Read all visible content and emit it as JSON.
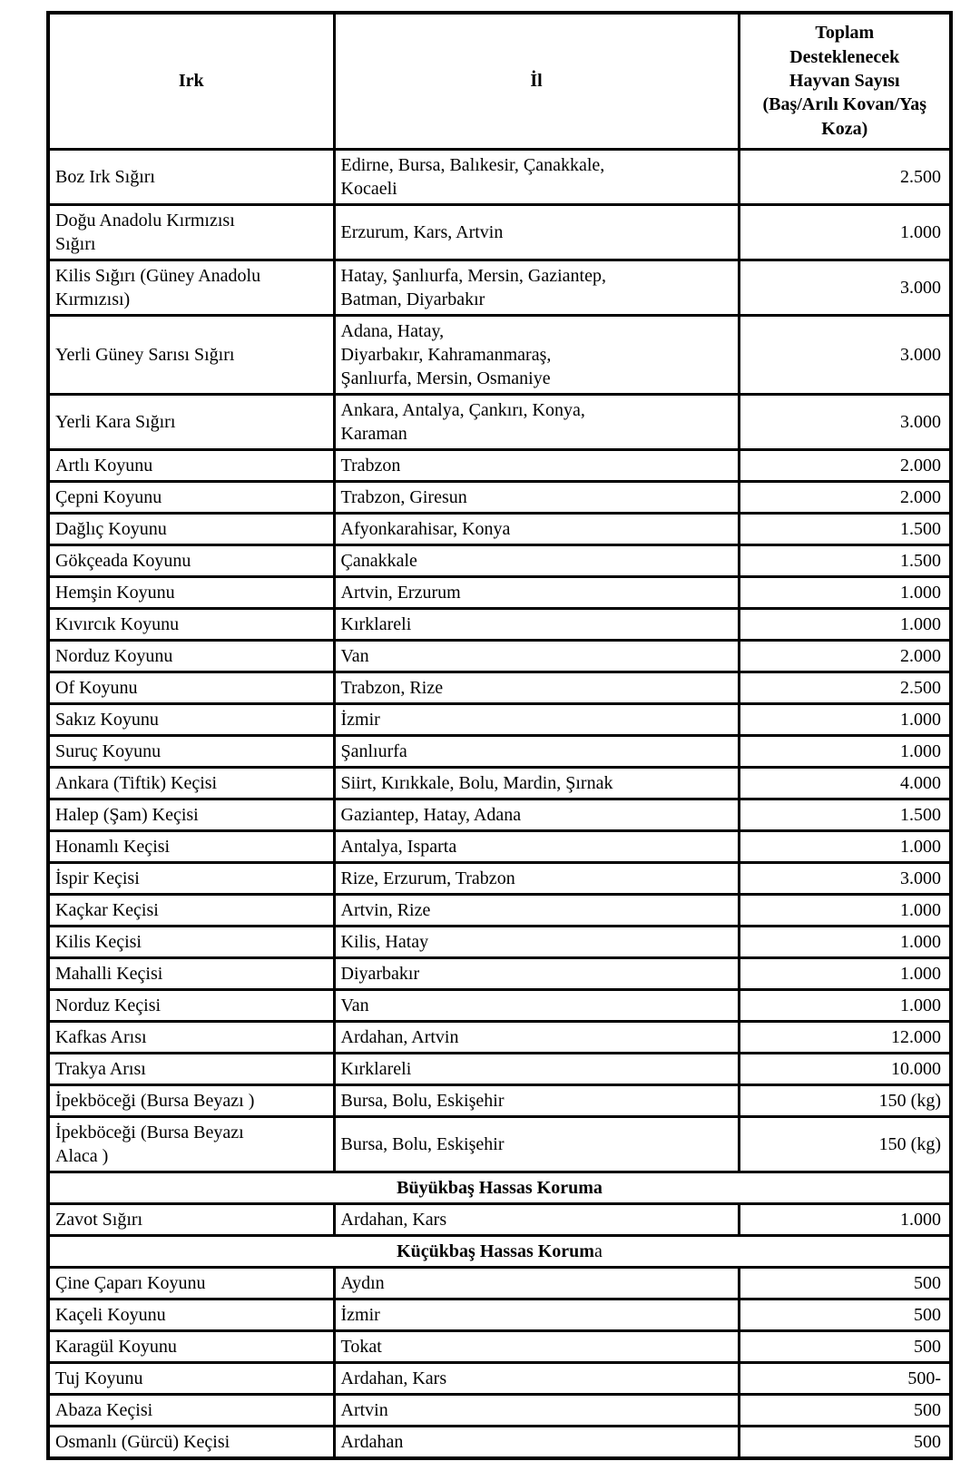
{
  "page": {
    "background_color": "#ffffff",
    "text_color": "#000000",
    "border_color": "#000000"
  },
  "table": {
    "headers": [
      "Irk",
      "İl",
      "Toplam\nDesteklenecek\nHayvan Sayısı\n(Baş/Arılı Kovan/Yaş\nKoza)"
    ],
    "rows": [
      {
        "type": "data",
        "irk": "Boz Irk Sığırı",
        "il": "Edirne, Bursa, Balıkesir, Çanakkale,\nKocaeli",
        "sayi": "2.500"
      },
      {
        "type": "data",
        "irk": "Doğu Anadolu Kırmızısı\nSığırı",
        "il": "Erzurum, Kars, Artvin",
        "sayi": "1.000"
      },
      {
        "type": "data",
        "irk": "Kilis Sığırı (Güney Anadolu\nKırmızısı)",
        "il": "Hatay, Şanlıurfa, Mersin, Gaziantep,\nBatman, Diyarbakır",
        "sayi": "3.000"
      },
      {
        "type": "data",
        "irk": "Yerli Güney Sarısı Sığırı",
        "il": "Adana, Hatay,\nDiyarbakır, Kahramanmaraş,\nŞanlıurfa, Mersin, Osmaniye",
        "sayi": "3.000"
      },
      {
        "type": "data",
        "irk": "Yerli Kara Sığırı",
        "il": "Ankara, Antalya, Çankırı, Konya,\nKaraman",
        "sayi": "3.000"
      },
      {
        "type": "data",
        "irk": "Artlı Koyunu",
        "il": "Trabzon",
        "sayi": "2.000"
      },
      {
        "type": "data",
        "irk": "Çepni Koyunu",
        "il": "Trabzon, Giresun",
        "sayi": "2.000"
      },
      {
        "type": "data",
        "irk": "Dağlıç Koyunu",
        "il": "Afyonkarahisar, Konya",
        "sayi": "1.500"
      },
      {
        "type": "data",
        "irk": "Gökçeada Koyunu",
        "il": "Çanakkale",
        "sayi": "1.500"
      },
      {
        "type": "data",
        "irk": "Hemşin Koyunu",
        "il": "Artvin, Erzurum",
        "sayi": "1.000"
      },
      {
        "type": "data",
        "irk": "Kıvırcık Koyunu",
        "il": "Kırklareli",
        "sayi": "1.000"
      },
      {
        "type": "data",
        "irk": "Norduz Koyunu",
        "il": "Van",
        "sayi": "2.000"
      },
      {
        "type": "data",
        "irk": "Of Koyunu",
        "il": "Trabzon, Rize",
        "sayi": "2.500"
      },
      {
        "type": "data",
        "irk": "Sakız Koyunu",
        "il": "İzmir",
        "sayi": "1.000"
      },
      {
        "type": "data",
        "irk": "Suruç Koyunu",
        "il": "Şanlıurfa",
        "sayi": "1.000"
      },
      {
        "type": "data",
        "irk": "Ankara (Tiftik) Keçisi",
        "il": "Siirt, Kırıkkale, Bolu, Mardin, Şırnak",
        "sayi": "4.000"
      },
      {
        "type": "data",
        "irk": "Halep (Şam) Keçisi",
        "il": "Gaziantep, Hatay, Adana",
        "sayi": "1.500"
      },
      {
        "type": "data",
        "irk": "Honamlı Keçisi",
        "il": "Antalya, Isparta",
        "sayi": "1.000"
      },
      {
        "type": "data",
        "irk": "İspir Keçisi",
        "il": "Rize, Erzurum, Trabzon",
        "sayi": "3.000"
      },
      {
        "type": "data",
        "irk": "Kaçkar Keçisi",
        "il": "Artvin, Rize",
        "sayi": "1.000"
      },
      {
        "type": "data",
        "irk": "Kilis Keçisi",
        "il": "Kilis, Hatay",
        "sayi": "1.000"
      },
      {
        "type": "data",
        "irk": "Mahalli Keçisi",
        "il": "Diyarbakır",
        "sayi": "1.000"
      },
      {
        "type": "data",
        "irk": "Norduz Keçisi",
        "il": "Van",
        "sayi": "1.000"
      },
      {
        "type": "data",
        "irk": "Kafkas Arısı",
        "il": "Ardahan, Artvin",
        "sayi": "12.000"
      },
      {
        "type": "data",
        "irk": "Trakya Arısı",
        "il": "Kırklareli",
        "sayi": "10.000"
      },
      {
        "type": "data",
        "irk": "İpekböceği (Bursa Beyazı )",
        "il": "Bursa, Bolu, Eskişehir",
        "sayi": "150 (kg)"
      },
      {
        "type": "data",
        "irk": "İpekböceği (Bursa Beyazı\nAlaca )",
        "il": "Bursa, Bolu, Eskişehir",
        "sayi": "150 (kg)"
      },
      {
        "type": "section",
        "bold": "Büyükbaş Hassas Koruma",
        "regular": ""
      },
      {
        "type": "data",
        "irk": "Zavot Sığırı",
        "il": "Ardahan, Kars",
        "sayi": "1.000"
      },
      {
        "type": "section",
        "bold": "Küçükbaş Hassas Korum",
        "regular": "a"
      },
      {
        "type": "data",
        "irk": "Çine Çaparı Koyunu",
        "il": "Aydın",
        "sayi": "500"
      },
      {
        "type": "data",
        "irk": "Kaçeli Koyunu",
        "il": "İzmir",
        "sayi": "500"
      },
      {
        "type": "data",
        "irk": "Karagül Koyunu",
        "il": "Tokat",
        "sayi": "500"
      },
      {
        "type": "data",
        "irk": "Tuj Koyunu",
        "il": "Ardahan, Kars",
        "sayi": "500-"
      },
      {
        "type": "data",
        "irk": "Abaza Keçisi",
        "il": "Artvin",
        "sayi": "500"
      },
      {
        "type": "data",
        "irk": "Osmanlı (Gürcü) Keçisi",
        "il": "Ardahan",
        "sayi": "500"
      }
    ]
  }
}
